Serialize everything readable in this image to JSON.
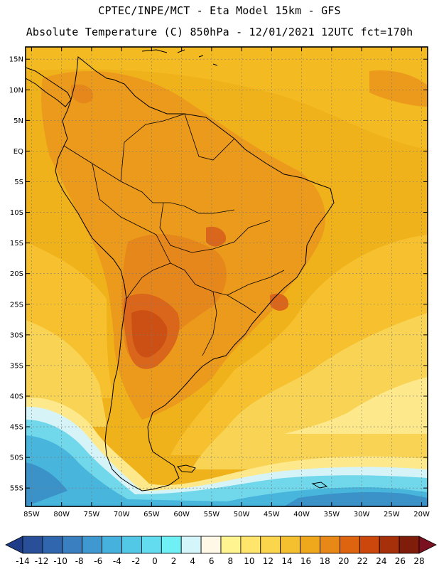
{
  "header": {
    "line1": "CPTEC/INPE/MCT -  Eta Model 15km - GFS",
    "line2": "Absolute Temperature (C) 850hPa - 12/01/2021 12UTC fct=170h"
  },
  "axes": {
    "lat_labels": [
      "15N",
      "10N",
      "5N",
      "EQ",
      "5S",
      "10S",
      "15S",
      "20S",
      "25S",
      "30S",
      "35S",
      "40S",
      "45S",
      "50S",
      "55S"
    ],
    "lat_values": [
      15,
      10,
      5,
      0,
      -5,
      -10,
      -15,
      -20,
      -25,
      -30,
      -35,
      -40,
      -45,
      -50,
      -55
    ],
    "lon_labels": [
      "85W",
      "80W",
      "75W",
      "70W",
      "65W",
      "60W",
      "55W",
      "50W",
      "45W",
      "40W",
      "35W",
      "30W",
      "25W",
      "20W"
    ],
    "lon_values": [
      -85,
      -80,
      -75,
      -70,
      -65,
      -60,
      -55,
      -50,
      -45,
      -40,
      -35,
      -30,
      -25,
      -20
    ],
    "lon_range": [
      -86,
      -19
    ],
    "lat_range": [
      -58,
      17
    ]
  },
  "colorbar": {
    "labels": [
      "-14",
      "-12",
      "-10",
      "-8",
      "-6",
      "-4",
      "-2",
      "0",
      "2",
      "4",
      "6",
      "8",
      "10",
      "12",
      "14",
      "16",
      "18",
      "20",
      "22",
      "24",
      "26",
      "28"
    ],
    "colors": [
      "#1f3c88",
      "#2a4f99",
      "#2f66ad",
      "#3a7fc0",
      "#3f98cf",
      "#45b1dc",
      "#52c8e6",
      "#62dcee",
      "#6ff0f4",
      "#d4f6fa",
      "#fff8e6",
      "#fff48f",
      "#ffe56b",
      "#fbd54c",
      "#f4c02f",
      "#efa71c",
      "#e88816",
      "#df6410",
      "#cc470c",
      "#a6300a",
      "#7f1d0a",
      "#7a1020"
    ]
  },
  "map": {
    "field_description_colors": {
      "ocean_tropical": "#f0b21a",
      "land_warm": "#ec9a1c",
      "hot_core": "#d9661a",
      "hotter_core": "#cc5014",
      "subtropical": "#f6c02e",
      "midlat": "#f9d454",
      "cool": "#fde98c",
      "cold1": "#d6f3f8",
      "cold2": "#70d8ea",
      "cold3": "#48b6dc",
      "cold4": "#3a92c8"
    },
    "coast_color": "#000000",
    "grid_color": "#7a7a7a"
  }
}
